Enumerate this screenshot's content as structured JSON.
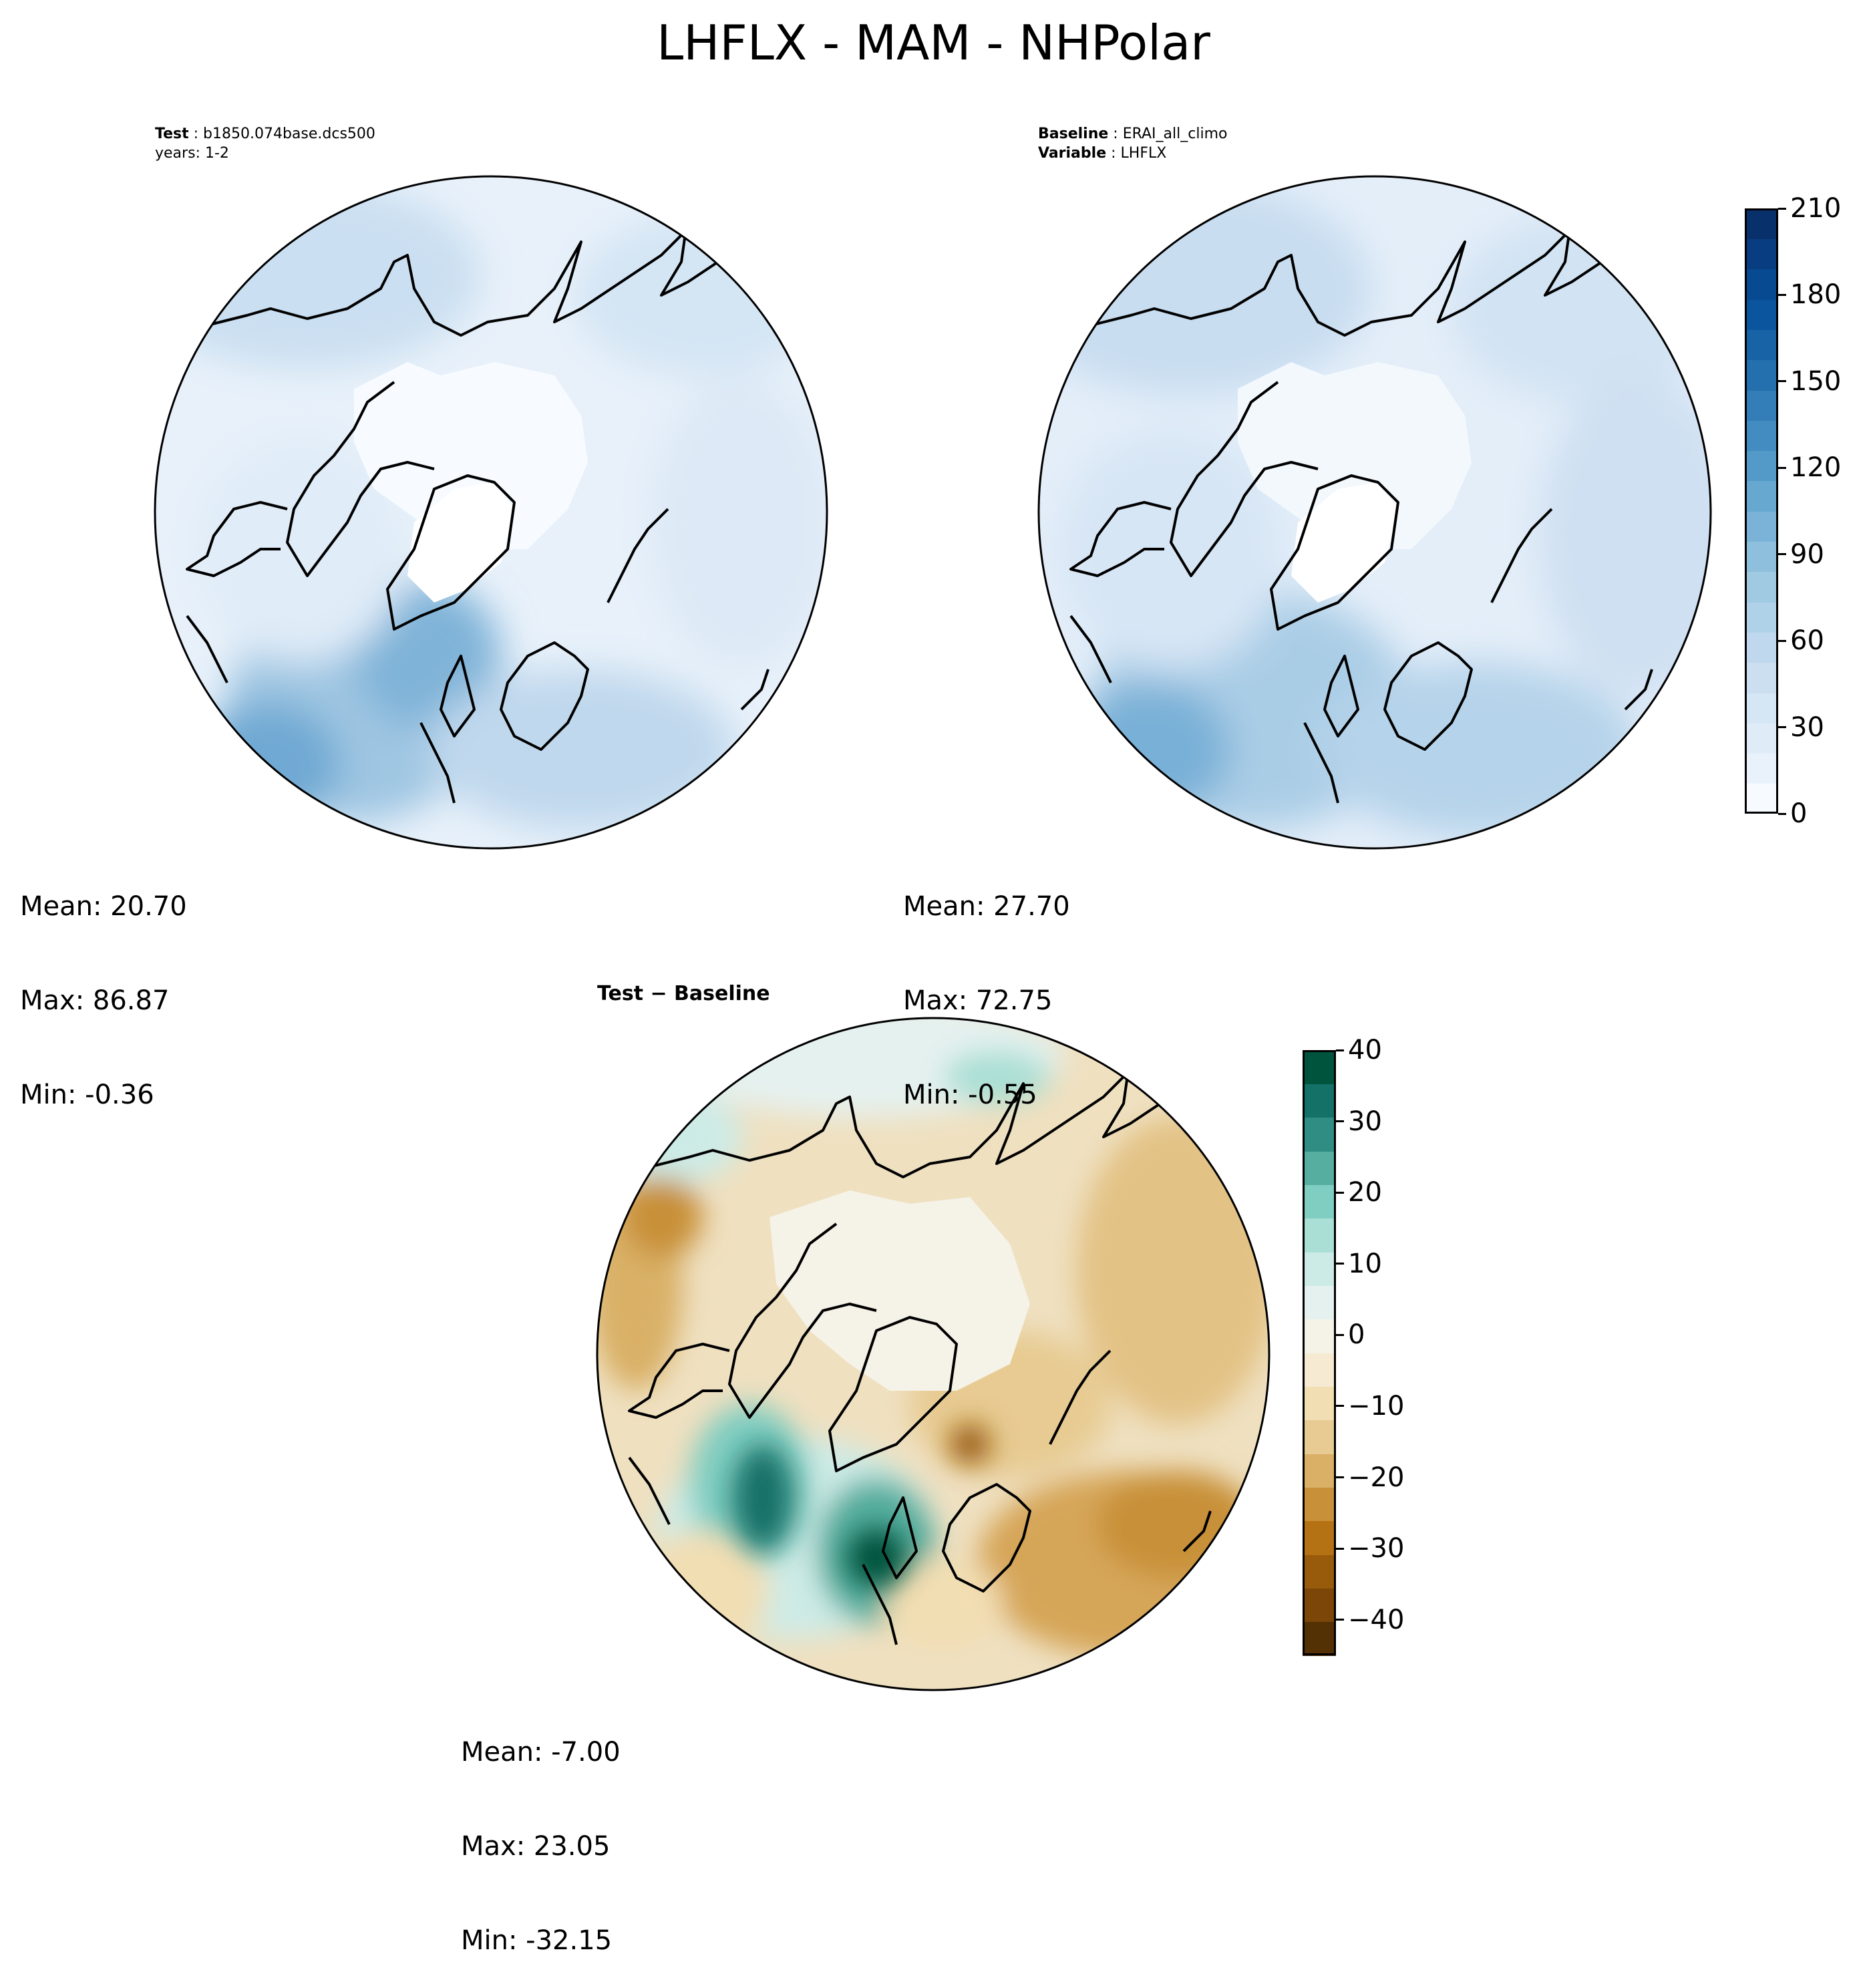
{
  "title": "LHFLX - MAM - NHPolar",
  "panels": {
    "test": {
      "header": {
        "label": "Test",
        "value": "b1850.074base.dcs500",
        "line2": "years: 1-2"
      },
      "stats": {
        "mean": "Mean: 20.70",
        "max": "Max: 86.87",
        "min": "Min: -0.36"
      }
    },
    "baseline": {
      "header": {
        "label": "Baseline",
        "value": "ERAI_all_climo",
        "label2": "Variable",
        "value2": "LHFLX"
      },
      "stats": {
        "mean": "Mean: 27.70",
        "max": "Max: 72.75",
        "min": "Min: -0.55"
      }
    },
    "diff": {
      "title": "Test − Baseline",
      "stats": {
        "mean": "Mean: -7.00",
        "max": "Max: 23.05",
        "min": "Min: -32.15"
      }
    }
  },
  "colorbars": {
    "main": {
      "ticks": [
        "0",
        "30",
        "60",
        "90",
        "120",
        "150",
        "180",
        "210"
      ],
      "range": [
        0,
        210
      ],
      "colors": [
        "#f7fbff",
        "#e9f2fb",
        "#dfecf8",
        "#d5e6f4",
        "#cbdff1",
        "#bfd8ed",
        "#b0d2e8",
        "#a0cae2",
        "#8ebfdd",
        "#7ab3d7",
        "#66a8d0",
        "#539ac8",
        "#428cc1",
        "#337db8",
        "#2470ae",
        "#1763a6",
        "#0b559e",
        "#084a91",
        "#083e81",
        "#08306b"
      ]
    },
    "diff": {
      "ticks": [
        "40",
        "30",
        "20",
        "10",
        "0",
        "−10",
        "−20",
        "−30",
        "−40"
      ],
      "range": [
        -45,
        40
      ],
      "colors": [
        "#543005",
        "#7b4607",
        "#985a0b",
        "#b57214",
        "#c89039",
        "#d9b066",
        "#e7cb92",
        "#f2deb3",
        "#f6ead3",
        "#f5f2e8",
        "#e5f1ef",
        "#cdebe6",
        "#aadfd5",
        "#80cdc1",
        "#55ae9f",
        "#2f8d83",
        "#137168",
        "#00533c"
      ]
    }
  }
}
